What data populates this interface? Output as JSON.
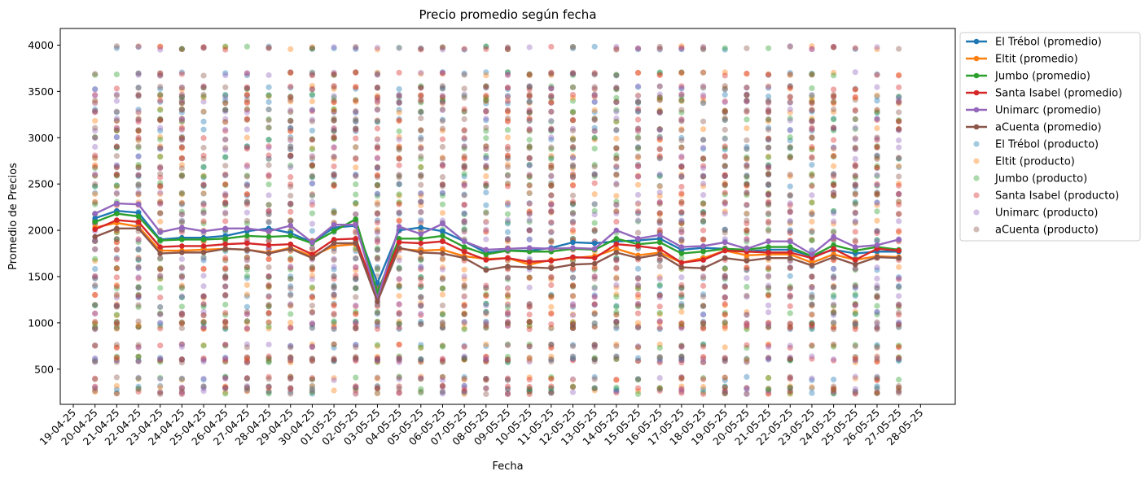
{
  "chart_data": {
    "type": "line",
    "title": "Precio promedio según fecha",
    "xlabel": "Fecha",
    "ylabel": "Promedio de Precios",
    "xticks": [
      "19-04-25",
      "20-04-25",
      "21-04-25",
      "22-04-25",
      "23-04-25",
      "24-04-25",
      "25-04-25",
      "26-04-25",
      "27-04-25",
      "28-04-25",
      "29-04-25",
      "30-04-25",
      "01-05-25",
      "02-05-25",
      "03-05-25",
      "04-05-25",
      "05-05-25",
      "06-05-25",
      "07-05-25",
      "08-05-25",
      "09-05-25",
      "10-05-25",
      "11-05-25",
      "12-05-25",
      "13-05-25",
      "14-05-25",
      "15-05-25",
      "16-05-25",
      "17-05-25",
      "18-05-25",
      "19-05-25",
      "20-05-25",
      "21-05-25",
      "22-05-25",
      "23-05-25",
      "24-05-25",
      "25-05-25",
      "26-05-25",
      "27-05-25",
      "28-05-25"
    ],
    "dates": [
      "20-04-25",
      "21-04-25",
      "22-04-25",
      "23-04-25",
      "24-04-25",
      "25-04-25",
      "26-04-25",
      "27-04-25",
      "28-04-25",
      "29-04-25",
      "30-04-25",
      "01-05-25",
      "02-05-25",
      "03-05-25",
      "04-05-25",
      "05-05-25",
      "06-05-25",
      "07-05-25",
      "08-05-25",
      "09-05-25",
      "10-05-25",
      "11-05-25",
      "12-05-25",
      "13-05-25",
      "14-05-25",
      "15-05-25",
      "16-05-25",
      "17-05-25",
      "18-05-25",
      "19-05-25",
      "20-05-25",
      "21-05-25",
      "22-05-25",
      "23-05-25",
      "24-05-25",
      "25-05-25",
      "26-05-25",
      "27-05-25"
    ],
    "yticks": [
      500,
      1000,
      1500,
      2000,
      2500,
      3000,
      3500,
      4000
    ],
    "ylim": [
      120,
      4180
    ],
    "series": [
      {
        "name": "El Trébol (promedio)",
        "color": "#1f77b4",
        "values": [
          2130,
          2210,
          2190,
          1900,
          1920,
          1920,
          1940,
          1990,
          2020,
          1970,
          1870,
          2030,
          2050,
          1430,
          2000,
          2030,
          1990,
          1880,
          1760,
          1780,
          1780,
          1810,
          1870,
          1860,
          1880,
          1890,
          1910,
          1790,
          1810,
          1800,
          1770,
          1790,
          1790,
          1720,
          1790,
          1750,
          1770,
          1770
        ]
      },
      {
        "name": "Eltit (promedio)",
        "color": "#ff7f0e",
        "values": [
          2030,
          2080,
          2040,
          1780,
          1780,
          1790,
          1800,
          1790,
          1760,
          1810,
          1720,
          1830,
          1850,
          1310,
          1800,
          1780,
          1790,
          1720,
          1690,
          1700,
          1630,
          1680,
          1700,
          1720,
          1800,
          1730,
          1760,
          1650,
          1700,
          1780,
          1730,
          1740,
          1740,
          1650,
          1740,
          1680,
          1720,
          1710
        ]
      },
      {
        "name": "Jumbo (promedio)",
        "color": "#2ca02c",
        "values": [
          2090,
          2180,
          2150,
          1890,
          1900,
          1900,
          1910,
          1940,
          1930,
          1940,
          1860,
          1990,
          2120,
          1330,
          1910,
          1910,
          1940,
          1820,
          1740,
          1780,
          1770,
          1770,
          1800,
          1790,
          1910,
          1850,
          1870,
          1750,
          1770,
          1800,
          1790,
          1820,
          1820,
          1720,
          1840,
          1780,
          1820,
          1790
        ]
      },
      {
        "name": "Santa Isabel (promedio)",
        "color": "#d62728",
        "values": [
          2010,
          2110,
          2090,
          1820,
          1830,
          1830,
          1850,
          1860,
          1840,
          1850,
          1740,
          1900,
          1910,
          1270,
          1870,
          1860,
          1880,
          1770,
          1680,
          1700,
          1660,
          1670,
          1710,
          1700,
          1850,
          1830,
          1800,
          1650,
          1680,
          1780,
          1770,
          1760,
          1760,
          1700,
          1800,
          1680,
          1800,
          1780
        ]
      },
      {
        "name": "Unimarc (promedio)",
        "color": "#9467bd",
        "values": [
          2180,
          2290,
          2280,
          1980,
          2030,
          1990,
          2020,
          2020,
          1990,
          2050,
          1870,
          2060,
          2060,
          1260,
          2040,
          1960,
          2070,
          1880,
          1790,
          1800,
          1810,
          1800,
          1810,
          1800,
          2000,
          1910,
          1950,
          1820,
          1830,
          1870,
          1800,
          1880,
          1880,
          1740,
          1930,
          1820,
          1840,
          1900
        ]
      },
      {
        "name": "aCuenta (promedio)",
        "color": "#8c564b",
        "values": [
          1930,
          2020,
          2020,
          1750,
          1760,
          1760,
          1800,
          1790,
          1750,
          1800,
          1700,
          1860,
          1860,
          1230,
          1810,
          1760,
          1750,
          1700,
          1570,
          1610,
          1600,
          1590,
          1630,
          1640,
          1760,
          1700,
          1740,
          1600,
          1590,
          1700,
          1670,
          1700,
          1700,
          1620,
          1710,
          1630,
          1710,
          1700
        ]
      }
    ],
    "scatter_series": [
      {
        "name": "El Trébol (producto)",
        "color": "#1f77b4"
      },
      {
        "name": "Eltit (producto)",
        "color": "#ff7f0e"
      },
      {
        "name": "Jumbo (producto)",
        "color": "#2ca02c"
      },
      {
        "name": "Santa Isabel (producto)",
        "color": "#d62728"
      },
      {
        "name": "Unimarc (producto)",
        "color": "#9467bd"
      },
      {
        "name": "aCuenta (producto)",
        "color": "#8c564b"
      }
    ],
    "product_price_levels": [
      250,
      300,
      400,
      590,
      620,
      750,
      950,
      1000,
      1100,
      1190,
      1290,
      1390,
      1490,
      1590,
      1690,
      1790,
      1890,
      1990,
      2090,
      2190,
      2290,
      2390,
      2490,
      2590,
      2690,
      2790,
      2890,
      2990,
      3090,
      3190,
      3290,
      3390,
      3450,
      3540,
      3690,
      3970
    ],
    "legend_location": "outside upper right"
  }
}
